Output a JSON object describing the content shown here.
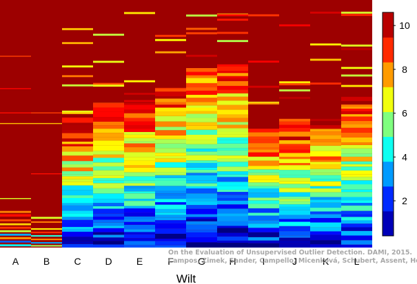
{
  "chart_data": {
    "type": "heatmap",
    "title": "",
    "xlabel": "Wilt",
    "ylabel": "",
    "categories": [
      "A",
      "B",
      "C",
      "D",
      "E",
      "F",
      "G",
      "H",
      "I",
      "J",
      "K",
      "L"
    ],
    "colorbar": {
      "min": 0.4,
      "max": 10.6,
      "ticks": [
        2,
        4,
        6,
        8,
        10
      ]
    },
    "colormap": "jet",
    "background_value": 10.3,
    "columns": [
      {
        "name": "A",
        "segments": [
          {
            "from": 0.835,
            "to": 1.0,
            "value": 10.3
          },
          {
            "from": 0.785,
            "to": 0.835,
            "value": 10.3
          },
          {
            "from": 0.771,
            "to": 0.775,
            "value": 8.7
          },
          {
            "from": 0.64,
            "to": 0.644,
            "value": 9.3
          },
          {
            "from": 0.542,
            "to": 0.546,
            "value": 9.2
          },
          {
            "from": 0.499,
            "to": 0.503,
            "value": 7.4
          },
          {
            "from": 0.196,
            "to": 0.2,
            "value": 6.4
          },
          {
            "from": 0.14,
            "to": 0.148,
            "value": 8.0
          },
          {
            "from": 0.125,
            "to": 0.135,
            "value": 9.2
          },
          {
            "from": 0.106,
            "to": 0.114,
            "value": 8.6
          },
          {
            "from": 0.09,
            "to": 0.098,
            "value": 7.2
          },
          {
            "from": 0.076,
            "to": 0.084,
            "value": 8.8
          },
          {
            "from": 0.062,
            "to": 0.07,
            "value": 6.2
          },
          {
            "from": 0.048,
            "to": 0.056,
            "value": 3.4
          },
          {
            "from": 0.034,
            "to": 0.042,
            "value": 7.8
          },
          {
            "from": 0.02,
            "to": 0.028,
            "value": 2.6
          },
          {
            "from": 0.005,
            "to": 0.013,
            "value": 4.2
          }
        ]
      },
      {
        "name": "B",
        "segments": [
          {
            "from": 0.542,
            "to": 0.546,
            "value": 8.7
          },
          {
            "from": 0.499,
            "to": 0.503,
            "value": 7.4
          },
          {
            "from": 0.296,
            "to": 0.3,
            "value": 9.2
          },
          {
            "from": 0.116,
            "to": 0.124,
            "value": 6.4
          },
          {
            "from": 0.1,
            "to": 0.106,
            "value": 8.1
          },
          {
            "from": 0.072,
            "to": 0.078,
            "value": 6.9
          },
          {
            "from": 0.058,
            "to": 0.064,
            "value": 8.9
          },
          {
            "from": 0.044,
            "to": 0.05,
            "value": 4.6
          },
          {
            "from": 0.03,
            "to": 0.036,
            "value": 7.9
          },
          {
            "from": 0.016,
            "to": 0.022,
            "value": 3.3
          },
          {
            "from": 0.004,
            "to": 0.01,
            "value": 5.8
          }
        ]
      }
    ]
  },
  "watermark": {
    "line1": "On the Evaluation of Unsupervised Outlier Detection. DAMI, 2015.",
    "line2": "Campos, Zimek, Sander, Campello, Micenková, Schubert, Assent, Houle"
  }
}
